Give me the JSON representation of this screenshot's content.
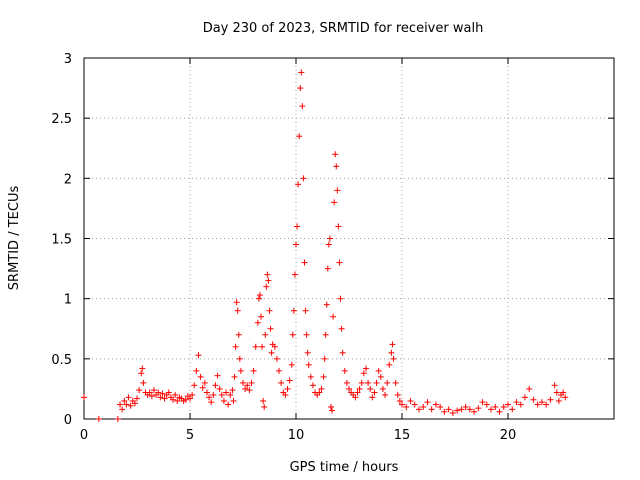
{
  "chart_data": {
    "type": "scatter",
    "title": "Day 230 of 2023, SRMTID for receiver walh",
    "xlabel": "GPS time / hours",
    "ylabel": "SRMTID / TECUs",
    "xlim": [
      0,
      25
    ],
    "ylim": [
      0,
      3
    ],
    "xticks": [
      0,
      5,
      10,
      15,
      20
    ],
    "xtick_labels": [
      "0",
      "5",
      "10",
      "15",
      "20"
    ],
    "yticks": [
      0,
      0.5,
      1,
      1.5,
      2,
      2.5,
      3
    ],
    "ytick_labels": [
      "0",
      "0.5",
      "1",
      "1.5",
      "2",
      "2.5",
      "3"
    ],
    "grid": true,
    "marker": "+",
    "color": "#ff0000",
    "series": [
      {
        "name": "SRMTID",
        "points": [
          [
            0.0,
            0.18
          ],
          [
            0.7,
            0.0
          ],
          [
            1.6,
            0.0
          ],
          [
            1.7,
            0.12
          ],
          [
            1.8,
            0.08
          ],
          [
            1.9,
            0.15
          ],
          [
            2.0,
            0.12
          ],
          [
            2.1,
            0.18
          ],
          [
            2.2,
            0.11
          ],
          [
            2.3,
            0.15
          ],
          [
            2.4,
            0.13
          ],
          [
            2.5,
            0.17
          ],
          [
            2.6,
            0.24
          ],
          [
            2.7,
            0.38
          ],
          [
            2.75,
            0.42
          ],
          [
            2.8,
            0.3
          ],
          [
            2.9,
            0.22
          ],
          [
            3.0,
            0.2
          ],
          [
            3.1,
            0.22
          ],
          [
            3.2,
            0.19
          ],
          [
            3.3,
            0.24
          ],
          [
            3.4,
            0.2
          ],
          [
            3.5,
            0.22
          ],
          [
            3.6,
            0.18
          ],
          [
            3.7,
            0.21
          ],
          [
            3.8,
            0.17
          ],
          [
            3.9,
            0.2
          ],
          [
            4.0,
            0.22
          ],
          [
            4.1,
            0.18
          ],
          [
            4.2,
            0.16
          ],
          [
            4.3,
            0.2
          ],
          [
            4.4,
            0.15
          ],
          [
            4.5,
            0.18
          ],
          [
            4.6,
            0.17
          ],
          [
            4.7,
            0.15
          ],
          [
            4.8,
            0.16
          ],
          [
            4.9,
            0.19
          ],
          [
            5.0,
            0.17
          ],
          [
            5.1,
            0.2
          ],
          [
            5.2,
            0.28
          ],
          [
            5.3,
            0.4
          ],
          [
            5.4,
            0.53
          ],
          [
            5.5,
            0.35
          ],
          [
            5.6,
            0.26
          ],
          [
            5.7,
            0.3
          ],
          [
            5.8,
            0.22
          ],
          [
            5.9,
            0.18
          ],
          [
            6.0,
            0.14
          ],
          [
            6.1,
            0.2
          ],
          [
            6.2,
            0.28
          ],
          [
            6.3,
            0.36
          ],
          [
            6.4,
            0.25
          ],
          [
            6.5,
            0.2
          ],
          [
            6.6,
            0.15
          ],
          [
            6.7,
            0.22
          ],
          [
            6.8,
            0.12
          ],
          [
            6.9,
            0.2
          ],
          [
            7.0,
            0.24
          ],
          [
            7.05,
            0.15
          ],
          [
            7.1,
            0.35
          ],
          [
            7.15,
            0.6
          ],
          [
            7.2,
            0.97
          ],
          [
            7.25,
            0.9
          ],
          [
            7.3,
            0.7
          ],
          [
            7.35,
            0.5
          ],
          [
            7.4,
            0.4
          ],
          [
            7.5,
            0.3
          ],
          [
            7.6,
            0.25
          ],
          [
            7.7,
            0.28
          ],
          [
            7.8,
            0.24
          ],
          [
            7.9,
            0.3
          ],
          [
            8.0,
            0.4
          ],
          [
            8.1,
            0.6
          ],
          [
            8.2,
            0.8
          ],
          [
            8.25,
            1.0
          ],
          [
            8.3,
            1.03
          ],
          [
            8.35,
            0.85
          ],
          [
            8.4,
            0.6
          ],
          [
            8.45,
            0.15
          ],
          [
            8.5,
            0.1
          ],
          [
            8.55,
            0.7
          ],
          [
            8.6,
            1.1
          ],
          [
            8.65,
            1.2
          ],
          [
            8.7,
            1.15
          ],
          [
            8.75,
            0.9
          ],
          [
            8.8,
            0.75
          ],
          [
            8.85,
            0.55
          ],
          [
            8.9,
            0.62
          ],
          [
            9.0,
            0.6
          ],
          [
            9.1,
            0.5
          ],
          [
            9.2,
            0.4
          ],
          [
            9.3,
            0.3
          ],
          [
            9.4,
            0.22
          ],
          [
            9.5,
            0.2
          ],
          [
            9.6,
            0.25
          ],
          [
            9.7,
            0.32
          ],
          [
            9.8,
            0.45
          ],
          [
            9.85,
            0.7
          ],
          [
            9.9,
            0.9
          ],
          [
            9.95,
            1.2
          ],
          [
            10.0,
            1.45
          ],
          [
            10.05,
            1.6
          ],
          [
            10.1,
            1.95
          ],
          [
            10.15,
            2.35
          ],
          [
            10.2,
            2.75
          ],
          [
            10.25,
            2.88
          ],
          [
            10.3,
            2.6
          ],
          [
            10.35,
            2.0
          ],
          [
            10.4,
            1.3
          ],
          [
            10.45,
            0.9
          ],
          [
            10.5,
            0.7
          ],
          [
            10.55,
            0.55
          ],
          [
            10.6,
            0.45
          ],
          [
            10.7,
            0.35
          ],
          [
            10.8,
            0.28
          ],
          [
            10.9,
            0.22
          ],
          [
            11.0,
            0.2
          ],
          [
            11.1,
            0.22
          ],
          [
            11.2,
            0.25
          ],
          [
            11.3,
            0.35
          ],
          [
            11.35,
            0.5
          ],
          [
            11.4,
            0.7
          ],
          [
            11.45,
            0.95
          ],
          [
            11.5,
            1.25
          ],
          [
            11.55,
            1.45
          ],
          [
            11.6,
            1.5
          ],
          [
            11.65,
            0.1
          ],
          [
            11.7,
            0.07
          ],
          [
            11.75,
            0.85
          ],
          [
            11.8,
            1.8
          ],
          [
            11.85,
            2.2
          ],
          [
            11.9,
            2.1
          ],
          [
            11.95,
            1.9
          ],
          [
            12.0,
            1.6
          ],
          [
            12.05,
            1.3
          ],
          [
            12.1,
            1.0
          ],
          [
            12.15,
            0.75
          ],
          [
            12.2,
            0.55
          ],
          [
            12.3,
            0.4
          ],
          [
            12.4,
            0.3
          ],
          [
            12.5,
            0.25
          ],
          [
            12.6,
            0.22
          ],
          [
            12.7,
            0.2
          ],
          [
            12.8,
            0.18
          ],
          [
            12.9,
            0.22
          ],
          [
            13.0,
            0.25
          ],
          [
            13.1,
            0.3
          ],
          [
            13.2,
            0.38
          ],
          [
            13.3,
            0.42
          ],
          [
            13.4,
            0.3
          ],
          [
            13.5,
            0.25
          ],
          [
            13.6,
            0.18
          ],
          [
            13.7,
            0.22
          ],
          [
            13.8,
            0.3
          ],
          [
            13.9,
            0.4
          ],
          [
            14.0,
            0.35
          ],
          [
            14.1,
            0.25
          ],
          [
            14.2,
            0.2
          ],
          [
            14.3,
            0.3
          ],
          [
            14.4,
            0.45
          ],
          [
            14.5,
            0.55
          ],
          [
            14.55,
            0.62
          ],
          [
            14.6,
            0.5
          ],
          [
            14.7,
            0.3
          ],
          [
            14.8,
            0.2
          ],
          [
            14.9,
            0.15
          ],
          [
            15.0,
            0.12
          ],
          [
            15.2,
            0.1
          ],
          [
            15.4,
            0.15
          ],
          [
            15.6,
            0.12
          ],
          [
            15.8,
            0.08
          ],
          [
            16.0,
            0.1
          ],
          [
            16.2,
            0.14
          ],
          [
            16.4,
            0.08
          ],
          [
            16.6,
            0.12
          ],
          [
            16.8,
            0.1
          ],
          [
            17.0,
            0.06
          ],
          [
            17.2,
            0.08
          ],
          [
            17.4,
            0.05
          ],
          [
            17.6,
            0.07
          ],
          [
            17.8,
            0.08
          ],
          [
            18.0,
            0.1
          ],
          [
            18.2,
            0.08
          ],
          [
            18.4,
            0.06
          ],
          [
            18.6,
            0.09
          ],
          [
            18.8,
            0.14
          ],
          [
            19.0,
            0.12
          ],
          [
            19.2,
            0.08
          ],
          [
            19.4,
            0.1
          ],
          [
            19.6,
            0.06
          ],
          [
            19.8,
            0.1
          ],
          [
            20.0,
            0.12
          ],
          [
            20.2,
            0.08
          ],
          [
            20.4,
            0.14
          ],
          [
            20.6,
            0.12
          ],
          [
            20.8,
            0.18
          ],
          [
            21.0,
            0.25
          ],
          [
            21.2,
            0.16
          ],
          [
            21.4,
            0.12
          ],
          [
            21.6,
            0.14
          ],
          [
            21.8,
            0.12
          ],
          [
            22.0,
            0.16
          ],
          [
            22.2,
            0.28
          ],
          [
            22.3,
            0.22
          ],
          [
            22.4,
            0.15
          ],
          [
            22.5,
            0.2
          ],
          [
            22.6,
            0.22
          ],
          [
            22.7,
            0.18
          ]
        ]
      }
    ]
  }
}
